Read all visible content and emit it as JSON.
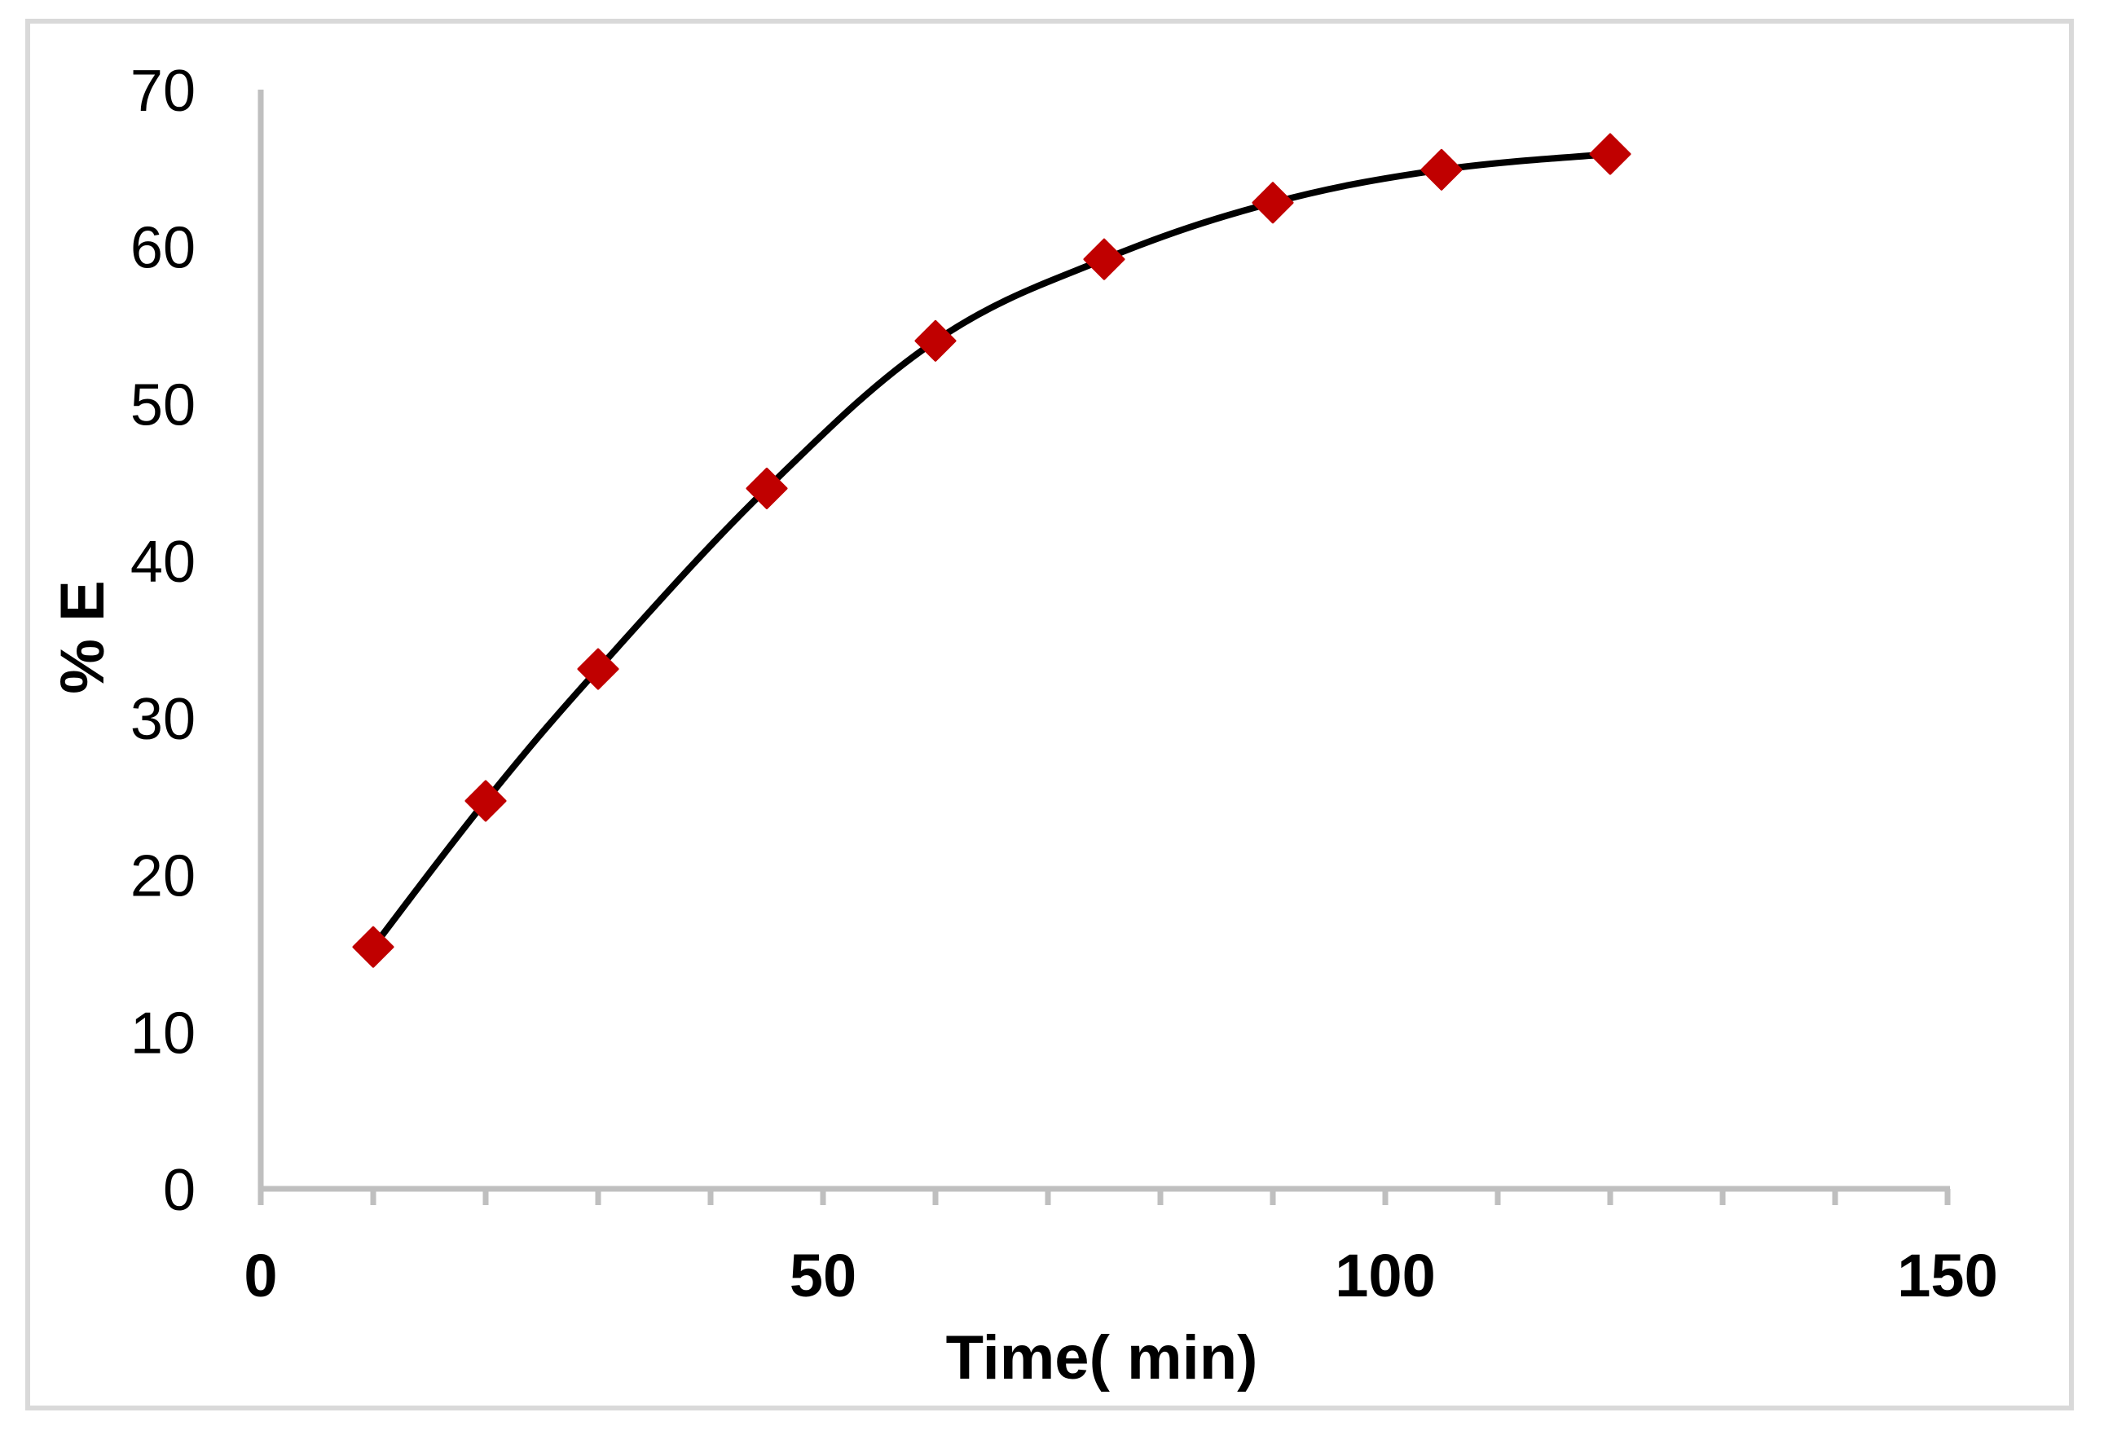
{
  "chart_data": {
    "type": "scatter",
    "subtype": "scatter-with-smooth-lines-and-markers",
    "title": "",
    "xlabel": "Time( min)",
    "ylabel": "% E",
    "xlim": [
      0,
      150
    ],
    "ylim": [
      0,
      70
    ],
    "x_major_ticks": [
      0,
      50,
      100,
      150
    ],
    "x_tick_labels": [
      "0",
      "50",
      "100",
      "150"
    ],
    "x_minor_tick_step": 10,
    "y_ticks": [
      0,
      10,
      20,
      30,
      40,
      50,
      60,
      70
    ],
    "y_tick_labels": [
      "0",
      "10",
      "20",
      "30",
      "40",
      "50",
      "60",
      "70"
    ],
    "grid": false,
    "legend": null,
    "series": [
      {
        "name": "% E",
        "x": [
          10,
          20,
          30,
          45,
          60,
          75,
          90,
          105,
          120
        ],
        "y": [
          15.4,
          24.7,
          33.1,
          44.6,
          54.0,
          59.2,
          62.8,
          64.9,
          65.9
        ],
        "line_color": "#000000",
        "marker": "diamond",
        "marker_color": "#C00000"
      }
    ]
  },
  "style": {
    "frame_color": "#D9D9D9",
    "axis_color": "#BFBFBF",
    "line_color": "#000000",
    "marker_color": "#C00000"
  }
}
